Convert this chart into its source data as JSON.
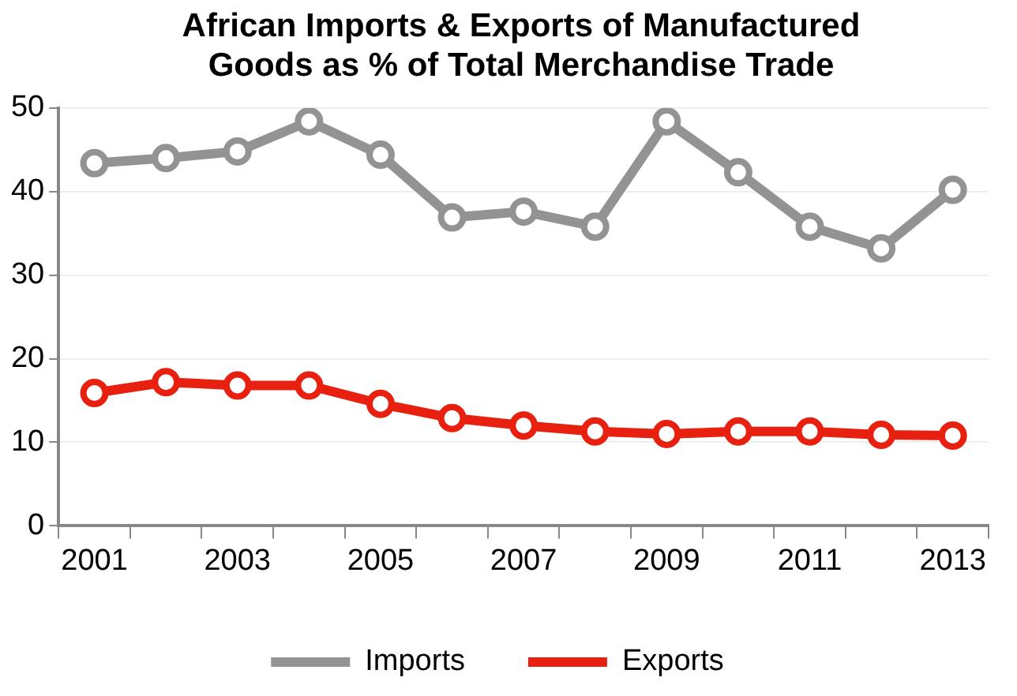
{
  "chart_data": {
    "type": "line",
    "title": "African Imports & Exports of Manufactured Goods as % of Total Merchandise Trade",
    "categories": [
      "2001",
      null,
      "2003",
      null,
      "2005",
      null,
      "2007",
      null,
      "2009",
      null,
      "2011",
      null,
      "2013"
    ],
    "series": [
      {
        "name": "Imports",
        "color": "#939393",
        "values": [
          43.4,
          44.0,
          44.8,
          48.4,
          44.4,
          36.9,
          37.6,
          35.8,
          48.4,
          42.3,
          35.8,
          33.2,
          40.2
        ]
      },
      {
        "name": "Exports",
        "color": "#e8200f",
        "values": [
          15.9,
          17.2,
          16.8,
          16.8,
          14.6,
          12.9,
          12.0,
          11.3,
          11.0,
          11.3,
          11.3,
          10.9,
          10.8
        ]
      }
    ],
    "ylim": [
      0,
      50
    ],
    "yticks": [
      0,
      10,
      20,
      30,
      40,
      50
    ],
    "grid": "y",
    "legend": "bottom",
    "marker": "circle",
    "line_style": "solid"
  }
}
